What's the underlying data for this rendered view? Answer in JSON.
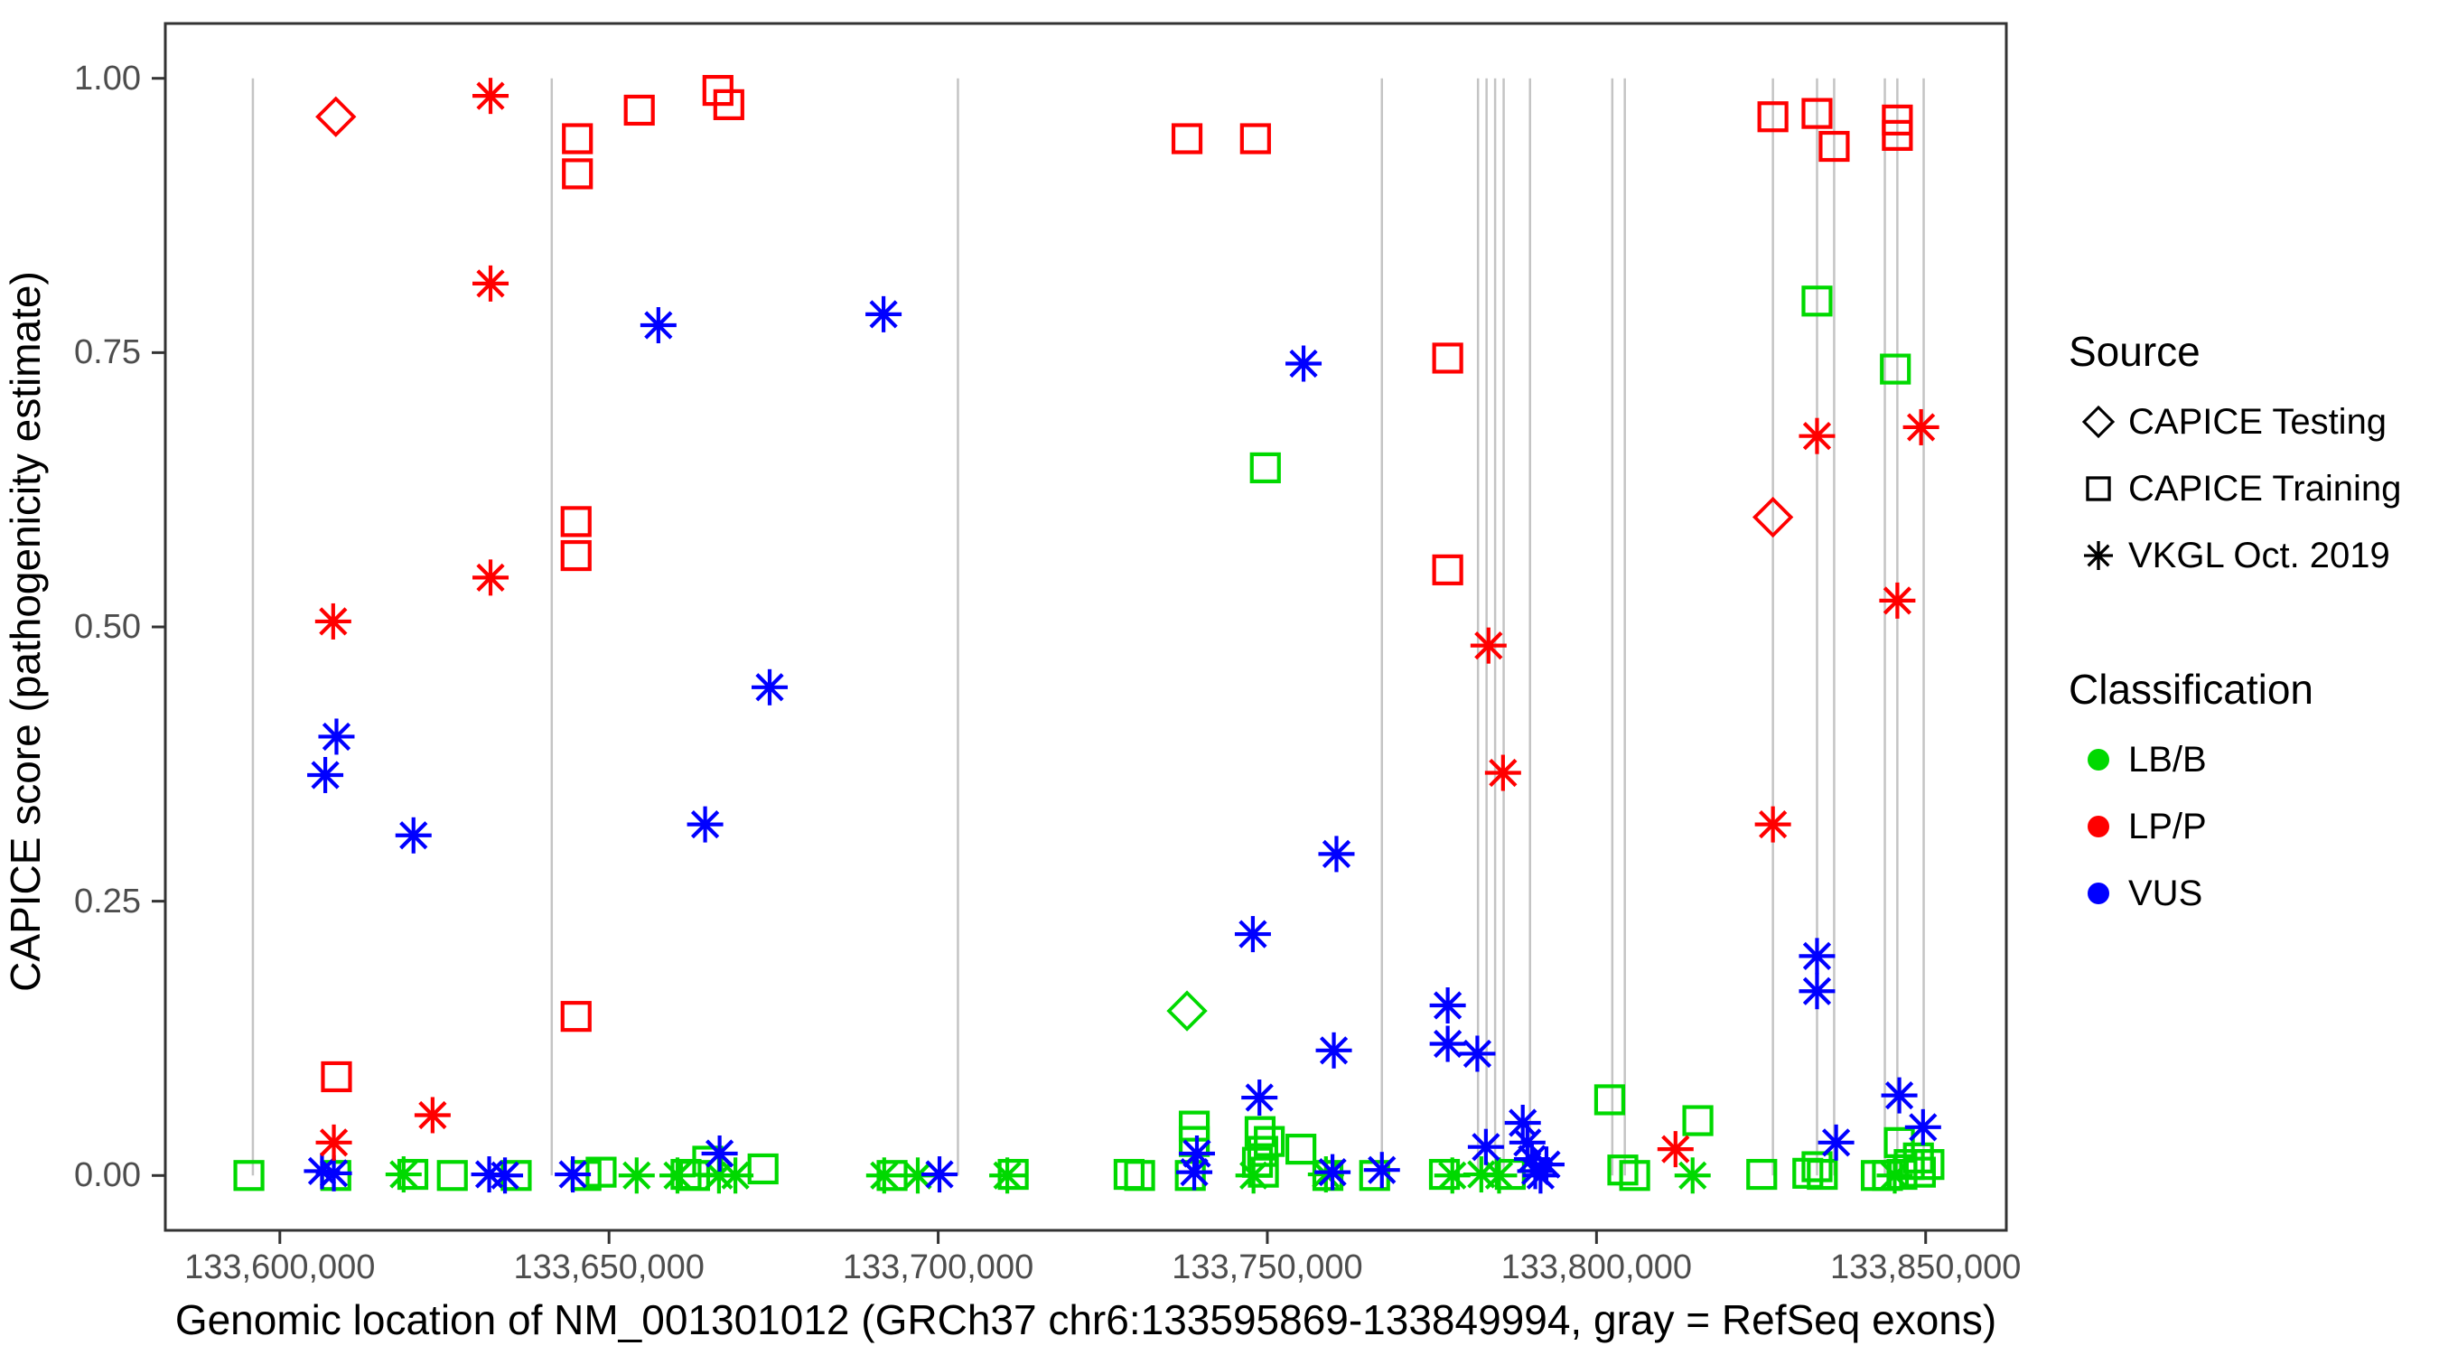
{
  "chart_data": {
    "type": "scatter",
    "x_label": "Genomic location of NM_001301012 (GRCh37 chr6:133595869-133849994, gray = RefSeq exons)",
    "y_label": "CAPICE score (pathogenicity estimate)",
    "x_domain": [
      133582600,
      133862250
    ],
    "y_domain": [
      -0.05,
      1.05
    ],
    "x_ticks": [
      {
        "pos": 133600000,
        "label": "133,600,000"
      },
      {
        "pos": 133650000,
        "label": "133,650,000"
      },
      {
        "pos": 133700000,
        "label": "133,700,000"
      },
      {
        "pos": 133750000,
        "label": "133,750,000"
      },
      {
        "pos": 133800000,
        "label": "133,800,000"
      },
      {
        "pos": 133850000,
        "label": "133,850,000"
      }
    ],
    "y_ticks": [
      {
        "val": 0.0,
        "label": "0.00"
      },
      {
        "val": 0.25,
        "label": "0.25"
      },
      {
        "val": 0.5,
        "label": "0.50"
      },
      {
        "val": 0.75,
        "label": "0.75"
      },
      {
        "val": 1.0,
        "label": "1.00"
      }
    ],
    "class_colors": {
      "LB/B": "#00D900",
      "LP/P": "#FF0000",
      "VUS": "#0000FF"
    },
    "source_shapes": {
      "CAPICE Testing": "diamond",
      "CAPICE Training": "square",
      "VKGL Oct. 2019": "asterisk"
    },
    "exon_color": "#C4C4C4",
    "exon_lines": [
      133595900,
      133641300,
      133703000,
      133767400,
      133782000,
      133783300,
      133784600,
      133785900,
      133789900,
      133802400,
      133804300,
      133826800,
      133833500,
      133836100,
      133843800,
      133845700,
      133849700
    ],
    "points": [
      [
        133608500,
        0.965,
        "LP/P",
        "CAPICE Testing"
      ],
      [
        133826800,
        0.6,
        "LP/P",
        "CAPICE Testing"
      ],
      [
        133737800,
        0.15,
        "LB/B",
        "CAPICE Testing"
      ],
      [
        133632000,
        0.984,
        "LP/P",
        "VKGL Oct. 2019"
      ],
      [
        133632000,
        0.813,
        "LP/P",
        "VKGL Oct. 2019"
      ],
      [
        133632000,
        0.545,
        "LP/P",
        "VKGL Oct. 2019"
      ],
      [
        133608100,
        0.505,
        "LP/P",
        "VKGL Oct. 2019"
      ],
      [
        133623200,
        0.055,
        "LP/P",
        "VKGL Oct. 2019"
      ],
      [
        133608200,
        0.03,
        "LP/P",
        "VKGL Oct. 2019"
      ],
      [
        133783600,
        0.483,
        "LP/P",
        "VKGL Oct. 2019"
      ],
      [
        133785800,
        0.367,
        "LP/P",
        "VKGL Oct. 2019"
      ],
      [
        133826800,
        0.32,
        "LP/P",
        "VKGL Oct. 2019"
      ],
      [
        133833500,
        0.674,
        "LP/P",
        "VKGL Oct. 2019"
      ],
      [
        133845700,
        0.524,
        "LP/P",
        "VKGL Oct. 2019"
      ],
      [
        133849300,
        0.682,
        "LP/P",
        "VKGL Oct. 2019"
      ],
      [
        133812000,
        0.024,
        "LP/P",
        "VKGL Oct. 2019"
      ],
      [
        133645200,
        0.945,
        "LP/P",
        "CAPICE Training"
      ],
      [
        133645200,
        0.913,
        "LP/P",
        "CAPICE Training"
      ],
      [
        133654600,
        0.971,
        "LP/P",
        "CAPICE Training"
      ],
      [
        133666550,
        0.989,
        "LP/P",
        "CAPICE Training"
      ],
      [
        133668200,
        0.976,
        "LP/P",
        "CAPICE Training"
      ],
      [
        133737800,
        0.945,
        "LP/P",
        "CAPICE Training"
      ],
      [
        133748200,
        0.945,
        "LP/P",
        "CAPICE Training"
      ],
      [
        133826800,
        0.965,
        "LP/P",
        "CAPICE Training"
      ],
      [
        133833500,
        0.968,
        "LP/P",
        "CAPICE Training"
      ],
      [
        133836100,
        0.938,
        "LP/P",
        "CAPICE Training"
      ],
      [
        133845700,
        0.962,
        "LP/P",
        "CAPICE Training"
      ],
      [
        133845700,
        0.948,
        "LP/P",
        "CAPICE Training"
      ],
      [
        133777400,
        0.745,
        "LP/P",
        "CAPICE Training"
      ],
      [
        133777400,
        0.552,
        "LP/P",
        "CAPICE Training"
      ],
      [
        133645000,
        0.596,
        "LP/P",
        "CAPICE Training"
      ],
      [
        133645000,
        0.565,
        "LP/P",
        "CAPICE Training"
      ],
      [
        133645000,
        0.145,
        "LP/P",
        "CAPICE Training"
      ],
      [
        133608600,
        0.09,
        "LP/P",
        "CAPICE Training"
      ],
      [
        133749700,
        0.645,
        "LB/B",
        "CAPICE Training"
      ],
      [
        133833500,
        0.797,
        "LB/B",
        "CAPICE Training"
      ],
      [
        133845400,
        0.735,
        "LB/B",
        "CAPICE Training"
      ],
      [
        133802000,
        0.069,
        "LB/B",
        "CAPICE Training"
      ],
      [
        133815400,
        0.05,
        "LB/B",
        "CAPICE Training"
      ],
      [
        133846000,
        0.03,
        "LB/B",
        "CAPICE Training"
      ],
      [
        133657500,
        0.775,
        "VUS",
        "VKGL Oct. 2019"
      ],
      [
        133691700,
        0.785,
        "VUS",
        "VKGL Oct. 2019"
      ],
      [
        133755500,
        0.74,
        "VUS",
        "VKGL Oct. 2019"
      ],
      [
        133608600,
        0.4,
        "VUS",
        "VKGL Oct. 2019"
      ],
      [
        133606900,
        0.365,
        "VUS",
        "VKGL Oct. 2019"
      ],
      [
        133620300,
        0.31,
        "VUS",
        "VKGL Oct. 2019"
      ],
      [
        133664600,
        0.32,
        "VUS",
        "VKGL Oct. 2019"
      ],
      [
        133674400,
        0.445,
        "VUS",
        "VKGL Oct. 2019"
      ],
      [
        133760500,
        0.293,
        "VUS",
        "VKGL Oct. 2019"
      ],
      [
        133747800,
        0.22,
        "VUS",
        "VKGL Oct. 2019"
      ],
      [
        133833500,
        0.2,
        "VUS",
        "VKGL Oct. 2019"
      ],
      [
        133833500,
        0.168,
        "VUS",
        "VKGL Oct. 2019"
      ],
      [
        133777400,
        0.155,
        "VUS",
        "VKGL Oct. 2019"
      ],
      [
        133777400,
        0.12,
        "VUS",
        "VKGL Oct. 2019"
      ],
      [
        133781900,
        0.111,
        "VUS",
        "VKGL Oct. 2019"
      ],
      [
        133760100,
        0.114,
        "VUS",
        "VKGL Oct. 2019"
      ],
      [
        133748800,
        0.071,
        "VUS",
        "VKGL Oct. 2019"
      ],
      [
        133846000,
        0.073,
        "VUS",
        "VKGL Oct. 2019"
      ],
      [
        133849600,
        0.044,
        "VUS",
        "VKGL Oct. 2019"
      ],
      [
        133836400,
        0.03,
        "VUS",
        "VKGL Oct. 2019"
      ],
      [
        133783200,
        0.026,
        "VUS",
        "VKGL Oct. 2019"
      ],
      [
        133666800,
        0.02,
        "VUS",
        "VKGL Oct. 2019"
      ],
      [
        133606400,
        0.004,
        "VUS",
        "VKGL Oct. 2019"
      ],
      [
        133608200,
        0.002,
        "VUS",
        "VKGL Oct. 2019"
      ],
      [
        133631800,
        0.001,
        "VUS",
        "VKGL Oct. 2019"
      ],
      [
        133634200,
        0.0,
        "VUS",
        "VKGL Oct. 2019"
      ],
      [
        133644500,
        0.001,
        "VUS",
        "VKGL Oct. 2019"
      ],
      [
        133700200,
        0.001,
        "VUS",
        "VKGL Oct. 2019"
      ],
      [
        133759900,
        0.003,
        "VUS",
        "VKGL Oct. 2019"
      ],
      [
        133767400,
        0.005,
        "VUS",
        "VKGL Oct. 2019"
      ],
      [
        133788800,
        0.048,
        "VUS",
        "VKGL Oct. 2019"
      ],
      [
        133789500,
        0.03,
        "VUS",
        "VKGL Oct. 2019"
      ],
      [
        133790200,
        0.015,
        "VUS",
        "VKGL Oct. 2019"
      ],
      [
        133790700,
        0.004,
        "VUS",
        "VKGL Oct. 2019"
      ],
      [
        133791500,
        0.0,
        "VUS",
        "VKGL Oct. 2019"
      ],
      [
        133792400,
        0.01,
        "VUS",
        "VKGL Oct. 2019"
      ],
      [
        133739300,
        0.02,
        "VUS",
        "VKGL Oct. 2019"
      ],
      [
        133738900,
        0.003,
        "VUS",
        "VKGL Oct. 2019"
      ],
      [
        133618800,
        0.001,
        "LB/B",
        "VKGL Oct. 2019"
      ],
      [
        133654200,
        0.0,
        "LB/B",
        "VKGL Oct. 2019"
      ],
      [
        133660400,
        0.0,
        "LB/B",
        "VKGL Oct. 2019"
      ],
      [
        133666700,
        0.0,
        "LB/B",
        "VKGL Oct. 2019"
      ],
      [
        133669200,
        0.0,
        "LB/B",
        "VKGL Oct. 2019"
      ],
      [
        133691800,
        0.0,
        "LB/B",
        "VKGL Oct. 2019"
      ],
      [
        133696900,
        0.0,
        "LB/B",
        "VKGL Oct. 2019"
      ],
      [
        133710500,
        0.0,
        "LB/B",
        "VKGL Oct. 2019"
      ],
      [
        133747900,
        0.0,
        "LB/B",
        "VKGL Oct. 2019"
      ],
      [
        133758900,
        0.001,
        "LB/B",
        "VKGL Oct. 2019"
      ],
      [
        133778100,
        0.0,
        "LB/B",
        "VKGL Oct. 2019"
      ],
      [
        133782500,
        0.001,
        "LB/B",
        "VKGL Oct. 2019"
      ],
      [
        133785200,
        0.0,
        "LB/B",
        "VKGL Oct. 2019"
      ],
      [
        133814600,
        0.0,
        "LB/B",
        "VKGL Oct. 2019"
      ],
      [
        133845300,
        0.0,
        "LB/B",
        "VKGL Oct. 2019"
      ],
      [
        133595300,
        0.0,
        "LB/B",
        "CAPICE Training"
      ],
      [
        133608500,
        0.0,
        "LB/B",
        "CAPICE Training"
      ],
      [
        133620200,
        0.001,
        "LB/B",
        "CAPICE Training"
      ],
      [
        133626200,
        0.0,
        "LB/B",
        "CAPICE Training"
      ],
      [
        133635900,
        0.0,
        "LB/B",
        "CAPICE Training"
      ],
      [
        133646500,
        0.0,
        "LB/B",
        "CAPICE Training"
      ],
      [
        133648800,
        0.003,
        "LB/B",
        "CAPICE Training"
      ],
      [
        133661700,
        0.001,
        "LB/B",
        "CAPICE Training"
      ],
      [
        133663000,
        0.0,
        "LB/B",
        "CAPICE Training"
      ],
      [
        133665000,
        0.013,
        "LB/B",
        "CAPICE Training"
      ],
      [
        133673400,
        0.006,
        "LB/B",
        "CAPICE Training"
      ],
      [
        133693000,
        0.0,
        "LB/B",
        "CAPICE Training"
      ],
      [
        133711400,
        0.001,
        "LB/B",
        "CAPICE Training"
      ],
      [
        133729000,
        0.001,
        "LB/B",
        "CAPICE Training"
      ],
      [
        133730600,
        0.0,
        "LB/B",
        "CAPICE Training"
      ],
      [
        133738900,
        0.045,
        "LB/B",
        "CAPICE Training"
      ],
      [
        133738900,
        0.031,
        "LB/B",
        "CAPICE Training"
      ],
      [
        133738300,
        0.0,
        "LB/B",
        "CAPICE Training"
      ],
      [
        133748900,
        0.04,
        "LB/B",
        "CAPICE Training"
      ],
      [
        133750300,
        0.031,
        "LB/B",
        "CAPICE Training"
      ],
      [
        133749300,
        0.022,
        "LB/B",
        "CAPICE Training"
      ],
      [
        133748500,
        0.012,
        "LB/B",
        "CAPICE Training"
      ],
      [
        133749400,
        0.003,
        "LB/B",
        "CAPICE Training"
      ],
      [
        133755100,
        0.024,
        "LB/B",
        "CAPICE Training"
      ],
      [
        133759200,
        0.0,
        "LB/B",
        "CAPICE Training"
      ],
      [
        133766300,
        0.0,
        "LB/B",
        "CAPICE Training"
      ],
      [
        133776900,
        0.001,
        "LB/B",
        "CAPICE Training"
      ],
      [
        133786900,
        0.001,
        "LB/B",
        "CAPICE Training"
      ],
      [
        133804000,
        0.005,
        "LB/B",
        "CAPICE Training"
      ],
      [
        133805800,
        0.0,
        "LB/B",
        "CAPICE Training"
      ],
      [
        133825100,
        0.001,
        "LB/B",
        "CAPICE Training"
      ],
      [
        133832100,
        0.002,
        "LB/B",
        "CAPICE Training"
      ],
      [
        133833500,
        0.008,
        "LB/B",
        "CAPICE Training"
      ],
      [
        133834300,
        0.001,
        "LB/B",
        "CAPICE Training"
      ],
      [
        133842500,
        0.0,
        "LB/B",
        "CAPICE Training"
      ],
      [
        133844200,
        0.0,
        "LB/B",
        "CAPICE Training"
      ],
      [
        133846400,
        0.001,
        "LB/B",
        "CAPICE Training"
      ],
      [
        133847500,
        0.01,
        "LB/B",
        "CAPICE Training"
      ],
      [
        133848900,
        0.016,
        "LB/B",
        "CAPICE Training"
      ],
      [
        133850500,
        0.01,
        "LB/B",
        "CAPICE Training"
      ],
      [
        133849200,
        0.003,
        "LB/B",
        "CAPICE Training"
      ]
    ]
  },
  "legend": {
    "source": {
      "title": "Source",
      "items": [
        {
          "label": "CAPICE Testing",
          "marker": "diamond",
          "color": "#000000"
        },
        {
          "label": "CAPICE Training",
          "marker": "square",
          "color": "#000000"
        },
        {
          "label": "VKGL Oct. 2019",
          "marker": "asterisk",
          "color": "#000000"
        }
      ]
    },
    "classification": {
      "title": "Classification",
      "items": [
        {
          "label": "LB/B",
          "marker": "circle",
          "color": "#00D900"
        },
        {
          "label": "LP/P",
          "marker": "circle",
          "color": "#FF0000"
        },
        {
          "label": "VUS",
          "marker": "circle",
          "color": "#0000FF"
        }
      ]
    }
  }
}
